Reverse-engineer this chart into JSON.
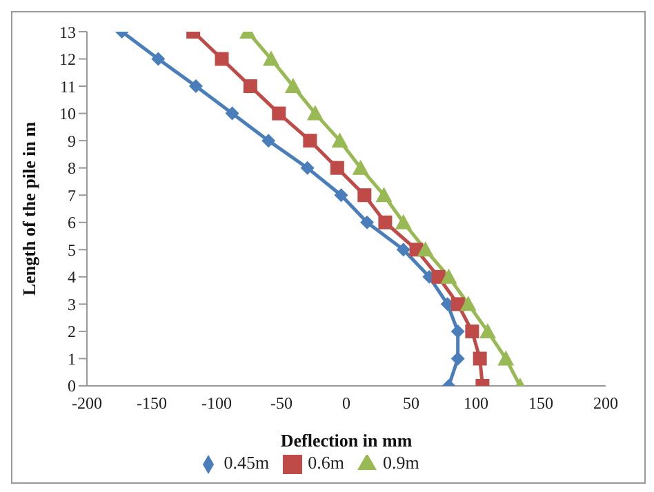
{
  "chart_data": {
    "type": "line",
    "xlabel": "Deflection in mm",
    "ylabel": "Length of the pile in m",
    "xlim": [
      -200,
      200
    ],
    "xticks": [
      -200,
      -150,
      -100,
      -50,
      0,
      50,
      100,
      150,
      200
    ],
    "ylim": [
      0,
      13
    ],
    "yticks": [
      0,
      1,
      2,
      3,
      4,
      5,
      6,
      7,
      8,
      9,
      10,
      11,
      12,
      13
    ],
    "grid": false,
    "legend": "bottom",
    "line_style": "solid",
    "series": [
      {
        "name": "0.45m",
        "color": "#4a7ebb",
        "marker": "diamond",
        "x": [
          79,
          86,
          86,
          78,
          64,
          44,
          16,
          -4,
          -30,
          -60,
          -88,
          -116,
          -145,
          -173
        ],
        "values": [
          0,
          1,
          2,
          3,
          4,
          5,
          6,
          7,
          8,
          9,
          10,
          11,
          12,
          13
        ]
      },
      {
        "name": "0.6m",
        "color": "#be4b48",
        "marker": "square",
        "x": [
          105,
          103,
          97,
          86,
          71,
          54,
          30,
          14,
          -7,
          -28,
          -52,
          -74,
          -96,
          -118
        ],
        "values": [
          0,
          1,
          2,
          3,
          4,
          5,
          6,
          7,
          8,
          9,
          10,
          11,
          12,
          13
        ]
      },
      {
        "name": "0.9m",
        "color": "#98b954",
        "marker": "triangle",
        "x": [
          134,
          123,
          109,
          94,
          79,
          61,
          44,
          29,
          11,
          -5,
          -24,
          -41,
          -58,
          -76
        ],
        "values": [
          0,
          1,
          2,
          3,
          4,
          5,
          6,
          7,
          8,
          9,
          10,
          11,
          12,
          13
        ]
      }
    ]
  }
}
